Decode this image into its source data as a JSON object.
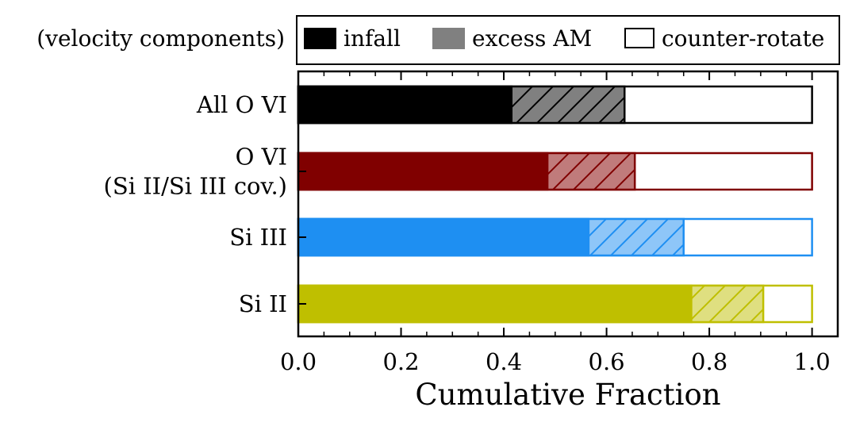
{
  "chart_data": {
    "type": "bar",
    "orientation": "horizontal",
    "stacked": "cumulative",
    "title": "",
    "xlabel": "Cumulative Fraction",
    "ylabel": "",
    "xlim": [
      0.0,
      1.05
    ],
    "x_ticks": [
      "0.0",
      "0.2",
      "0.4",
      "0.6",
      "0.8",
      "1.0"
    ],
    "x_tick_values": [
      0.0,
      0.2,
      0.4,
      0.6,
      0.8,
      1.0
    ],
    "legend": {
      "title": "(velocity components)",
      "placement": "top",
      "entries": [
        {
          "label": "infall",
          "style": "solid",
          "color": "#000000"
        },
        {
          "label": "excess AM",
          "style": "hatched",
          "color": "#808080"
        },
        {
          "label": "counter-rotate",
          "style": "empty",
          "color": "#000000"
        }
      ]
    },
    "series_names": [
      "infall",
      "excess AM",
      "counter-rotate"
    ],
    "categories": [
      {
        "lines": [
          "All O VI"
        ],
        "color": "#000000",
        "hatch_fill": "#808080",
        "infall": 0.415,
        "excess_AM": 0.635,
        "counter_rotate": 1.0
      },
      {
        "lines": [
          "O VI",
          "(Si II/Si III cov.)"
        ],
        "color": "#800000",
        "hatch_fill": "#c07b7b",
        "infall": 0.485,
        "excess_AM": 0.655,
        "counter_rotate": 1.0
      },
      {
        "lines": [
          "Si III"
        ],
        "color": "#1e8ff2",
        "hatch_fill": "#8ec6f8",
        "infall": 0.565,
        "excess_AM": 0.75,
        "counter_rotate": 1.0
      },
      {
        "lines": [
          "Si II"
        ],
        "color": "#bfbf00",
        "hatch_fill": "#dfdf80",
        "infall": 0.765,
        "excess_AM": 0.905,
        "counter_rotate": 1.0
      }
    ]
  }
}
